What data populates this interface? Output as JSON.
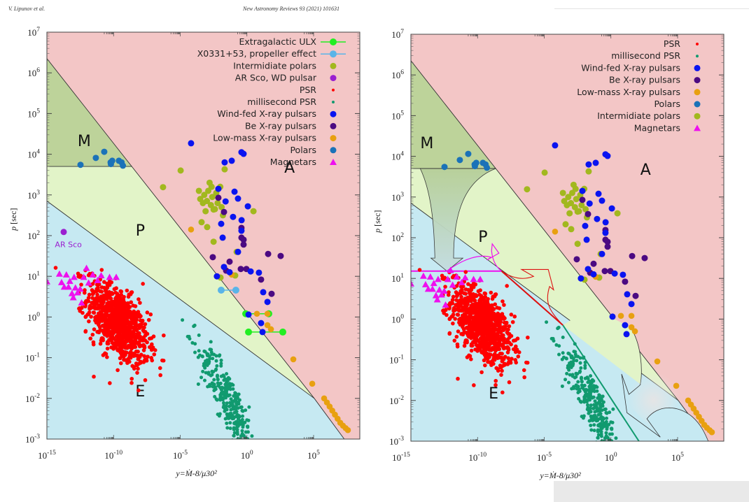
{
  "header": {
    "left": "V. Lipunov et al.",
    "right": "New Astronomy Reviews 93 (2021) 101631"
  },
  "colors": {
    "region_A": "#f3c6c6",
    "region_M": "#bdd39a",
    "region_P": "#e2f4c8",
    "region_E": "#c6e9f2",
    "PSR": "#ff0000",
    "msPSR": "#119a6f",
    "wind_fed": "#0a14f0",
    "be": "#4b0a82",
    "lmxb": "#e8a010",
    "polars": "#1b72b8",
    "ip": "#a2b81e",
    "arsco": "#9a20d0",
    "magnetar": "#ee10ee",
    "ulx": "#22ee22",
    "x0331": "#5ab4e8"
  },
  "chart_data": [
    {
      "id": "left",
      "type": "scatter",
      "xscale": "log",
      "yscale": "log",
      "xlim_log10": [
        -15,
        8.5
      ],
      "ylim_log10": [
        -3,
        7
      ],
      "xlabel": "y=Ṁ-8/μ30²",
      "ylabel": "p [sec]",
      "x_ticks": [
        "10-15",
        "10-10",
        "10-5",
        "100",
        "105"
      ],
      "x_tick_exps": [
        -15,
        -10,
        -5,
        0,
        5
      ],
      "y_ticks": [
        "10-3",
        "10-2",
        "10-1",
        "100",
        "101",
        "102",
        "103",
        "104",
        "105",
        "106",
        "107"
      ],
      "y_tick_exps": [
        -3,
        -2,
        -1,
        0,
        1,
        2,
        3,
        4,
        5,
        6,
        7
      ],
      "regions": [
        {
          "label": "M",
          "at": [
            -12.2,
            4.2
          ]
        },
        {
          "label": "P",
          "at": [
            -8,
            2.0
          ]
        },
        {
          "label": "A",
          "at": [
            3.2,
            3.55
          ]
        },
        {
          "label": "E",
          "at": [
            -8,
            -1.95
          ]
        }
      ],
      "boundaries": {
        "A_line": [
          [
            -15,
            6.35
          ],
          [
            5.05,
            -2.0
          ],
          [
            7.3,
            -3.0
          ]
        ],
        "PE_line": [
          [
            -15,
            2.85
          ],
          [
            5.05,
            -2.0
          ]
        ],
        "M_line_p_log10": 3.7
      },
      "legend": [
        {
          "label": "Extragalactic ULX",
          "key": "ulx",
          "marker": "line-dot"
        },
        {
          "label": "X0331+53, propeller effect",
          "key": "x0331",
          "marker": "line-dot"
        },
        {
          "label": "Intermidiate polars",
          "key": "ip",
          "marker": "dot"
        },
        {
          "label": "AR Sco, WD pulsar",
          "key": "arsco",
          "marker": "dot"
        },
        {
          "label": "PSR",
          "key": "PSR",
          "marker": "small-dot"
        },
        {
          "label": "millisecond PSR",
          "key": "msPSR",
          "marker": "small-dot"
        },
        {
          "label": "Wind-fed X-ray pulsars",
          "key": "wind_fed",
          "marker": "dot"
        },
        {
          "label": "Be X-ray pulsars",
          "key": "be",
          "marker": "dot"
        },
        {
          "label": "Low-mass X-ray pulsars",
          "key": "lmxb",
          "marker": "dot"
        },
        {
          "label": "Polars",
          "key": "polars",
          "marker": "dot"
        },
        {
          "label": "Magnetars",
          "key": "magnetar",
          "marker": "triangle"
        }
      ],
      "annotations": [
        {
          "text": "AR Sco",
          "at": [
            -14.4,
            1.72
          ],
          "key": "arsco"
        }
      ]
    },
    {
      "id": "right",
      "type": "scatter",
      "xscale": "log",
      "yscale": "log",
      "xlim_log10": [
        -15,
        8.5
      ],
      "ylim_log10": [
        -3,
        7
      ],
      "xlabel": "y=Ṁ-8/μ30²",
      "ylabel": "p [sec]",
      "x_ticks": [
        "10-15",
        "10-10",
        "10-5",
        "100",
        "105"
      ],
      "x_tick_exps": [
        -15,
        -10,
        -5,
        0,
        5
      ],
      "y_ticks": [
        "10-3",
        "10-2",
        "10-1",
        "100",
        "101",
        "102",
        "103",
        "104",
        "105",
        "106",
        "107"
      ],
      "y_tick_exps": [
        -3,
        -2,
        -1,
        0,
        1,
        2,
        3,
        4,
        5,
        6,
        7
      ],
      "regions": [
        {
          "label": "M",
          "at": [
            -13.8,
            4.2
          ]
        },
        {
          "label": "P",
          "at": [
            -9.6,
            1.9
          ]
        },
        {
          "label": "A",
          "at": [
            2.6,
            3.55
          ]
        },
        {
          "label": "E",
          "at": [
            -8.8,
            -1.95
          ]
        }
      ],
      "boundaries": {
        "A_line": [
          [
            -15,
            6.35
          ],
          [
            5.05,
            -2.0
          ],
          [
            7.3,
            -3.0
          ]
        ],
        "PE_line": [
          [
            -15,
            2.85
          ],
          [
            5.05,
            -2.0
          ]
        ],
        "M_line_p_log10": 3.7
      },
      "evolution_tracks": {
        "magenta_line_p_log10": 1.18,
        "magenta_line_x_range": [
          -15,
          -8.2
        ],
        "red_line": [
          [
            -8.2,
            1.18
          ],
          [
            -3.6,
            -0.15
          ]
        ],
        "green_line": [
          [
            -3.6,
            -0.15
          ],
          [
            2.1,
            -3.0
          ]
        ]
      },
      "legend": [
        {
          "label": "PSR",
          "key": "PSR",
          "marker": "small-dot"
        },
        {
          "label": "millisecond PSR",
          "key": "msPSR",
          "marker": "small-dot"
        },
        {
          "label": "Wind-fed X-ray pulsars",
          "key": "wind_fed",
          "marker": "dot"
        },
        {
          "label": "Be X-ray pulsars",
          "key": "be",
          "marker": "dot"
        },
        {
          "label": "Low-mass X-ray pulsars",
          "key": "lmxb",
          "marker": "dot"
        },
        {
          "label": "Polars",
          "key": "polars",
          "marker": "dot"
        },
        {
          "label": "Intermidiate polars",
          "key": "ip",
          "marker": "dot"
        },
        {
          "label": "Magnetars",
          "key": "magnetar",
          "marker": "triangle"
        }
      ]
    }
  ],
  "series": {
    "polars": [
      [
        -12.48,
        3.74
      ],
      [
        -11.33,
        3.91
      ],
      [
        -10.7,
        4.06
      ],
      [
        -10.22,
        3.8
      ],
      [
        -10.1,
        3.84
      ],
      [
        -9.6,
        3.84
      ],
      [
        -9.4,
        3.8
      ],
      [
        -9.3,
        3.72
      ],
      [
        -10.2,
        3.76
      ]
    ],
    "wind_fed": [
      [
        -4.19,
        4.27
      ],
      [
        -0.25,
        4.01
      ],
      [
        -1.67,
        3.8
      ],
      [
        -1.14,
        3.84
      ],
      [
        -0.41,
        4.05
      ],
      [
        -2.14,
        3.15
      ],
      [
        -0.93,
        3.08
      ],
      [
        -1.6,
        2.84
      ],
      [
        -0.67,
        2.91
      ],
      [
        0.07,
        2.72
      ],
      [
        -1.93,
        2.29
      ],
      [
        -1.04,
        2.46
      ],
      [
        -0.41,
        2.12
      ],
      [
        -1.82,
        1.95
      ],
      [
        -0.67,
        1.6
      ],
      [
        -1.72,
        1.23
      ],
      [
        0.28,
        1.12
      ],
      [
        0.9,
        1.09
      ],
      [
        1.22,
        0.61
      ],
      [
        1.54,
        0.37
      ],
      [
        0.12,
        0.06
      ],
      [
        1.06,
        -0.15
      ],
      [
        1.17,
        -0.37
      ],
      [
        -0.4,
        2.38
      ],
      [
        -2.25,
        1.0
      ],
      [
        -1.3,
        1.1
      ]
    ],
    "be": [
      [
        -2.14,
        2.93
      ],
      [
        -1.72,
        2.58
      ],
      [
        -0.41,
        2.19
      ],
      [
        -0.25,
        1.78
      ],
      [
        -2.56,
        1.47
      ],
      [
        -1.3,
        1.36
      ],
      [
        -0.46,
        1.18
      ],
      [
        -0.04,
        1.18
      ],
      [
        1.59,
        1.55
      ],
      [
        2.53,
        1.5
      ],
      [
        -1.56,
        1.14
      ],
      [
        1.06,
        0.92
      ],
      [
        1.85,
        0.57
      ],
      [
        -0.41,
        1.95
      ],
      [
        -0.25,
        1.9
      ]
    ],
    "ip": [
      [
        -6.29,
        3.19
      ],
      [
        -4.97,
        3.6
      ],
      [
        -1.67,
        3.63
      ],
      [
        0.49,
        2.6
      ],
      [
        -2.98,
        2.21
      ],
      [
        -3.4,
        2.33
      ],
      [
        -2.5,
        1.85
      ],
      [
        -0.77,
        1.6
      ],
      [
        -0.88,
        1.02
      ],
      [
        -1.98,
        0.97
      ],
      [
        -2.5,
        2.64
      ],
      [
        -3.2,
        3.0
      ],
      [
        -2.9,
        3.1
      ],
      [
        -3.0,
        2.85
      ],
      [
        -2.6,
        2.95
      ],
      [
        -2.3,
        3.05
      ],
      [
        -2.7,
        2.75
      ],
      [
        -3.3,
        2.8
      ],
      [
        -2.2,
        2.8
      ],
      [
        -2.0,
        3.2
      ],
      [
        -2.8,
        3.3
      ],
      [
        -3.5,
        2.9
      ],
      [
        -2.4,
        2.65
      ],
      [
        -1.9,
        2.7
      ],
      [
        -3.1,
        2.6
      ],
      [
        -2.65,
        3.2
      ],
      [
        -3.6,
        3.1
      ],
      [
        -1.8,
        2.5
      ]
    ],
    "lmxb": [
      [
        -4.19,
        2.15
      ],
      [
        -1.14,
        1.04
      ],
      [
        0.75,
        0.08
      ],
      [
        1.54,
        0.08
      ],
      [
        1.54,
        -0.2
      ],
      [
        1.8,
        -0.3
      ],
      [
        3.48,
        -1.04
      ],
      [
        4.9,
        -1.64
      ],
      [
        5.79,
        -2.0
      ],
      [
        6.0,
        -2.1
      ],
      [
        6.2,
        -2.2
      ],
      [
        6.4,
        -2.3
      ],
      [
        6.6,
        -2.4
      ],
      [
        6.8,
        -2.5
      ],
      [
        7.0,
        -2.6
      ],
      [
        7.2,
        -2.67
      ],
      [
        7.4,
        -2.73
      ],
      [
        7.57,
        -2.78
      ]
    ],
    "arsco": [
      [
        -13.74,
        2.09
      ]
    ],
    "magnetar": [
      [
        -15,
        0.87
      ],
      [
        -14.06,
        1.06
      ],
      [
        -13.54,
        1.04
      ],
      [
        -13.9,
        0.85
      ],
      [
        -13.28,
        0.88
      ],
      [
        -12.96,
        0.98
      ],
      [
        -13.38,
        0.74
      ],
      [
        -13.7,
        0.74
      ],
      [
        -12.86,
        0.72
      ],
      [
        -13.12,
        0.58
      ],
      [
        -13.02,
        0.48
      ],
      [
        -12.5,
        0.69
      ],
      [
        -12.24,
        0.98
      ],
      [
        -11.56,
        1.04
      ],
      [
        -11.87,
        0.84
      ],
      [
        -10.93,
        1.02
      ],
      [
        -12.03,
        1.2
      ],
      [
        -12.4,
        0.35
      ],
      [
        -11.2,
        0.9
      ],
      [
        -10.3,
        0.98
      ],
      [
        -9.8,
        0.98
      ],
      [
        -12.7,
        0.6
      ]
    ],
    "ulx": [
      [
        [
          -0.09,
          0.08
        ],
        [
          1.64,
          0.08
        ]
      ],
      [
        [
          0.12,
          -0.37
        ],
        [
          2.69,
          -0.37
        ]
      ]
    ],
    "x0331": [
      [
        [
          -1.93,
          0.66
        ],
        [
          -0.83,
          0.66
        ]
      ]
    ],
    "psr_cloud": {
      "center": [
        -9.7,
        -0.15
      ],
      "spread": [
        1.15,
        0.42
      ],
      "count": 900,
      "tilt": -0.25
    },
    "msp_cloud": {
      "center": [
        -1.4,
        -2.05
      ],
      "spread": [
        1.1,
        0.35
      ],
      "count": 300,
      "tilt": -0.55
    }
  }
}
